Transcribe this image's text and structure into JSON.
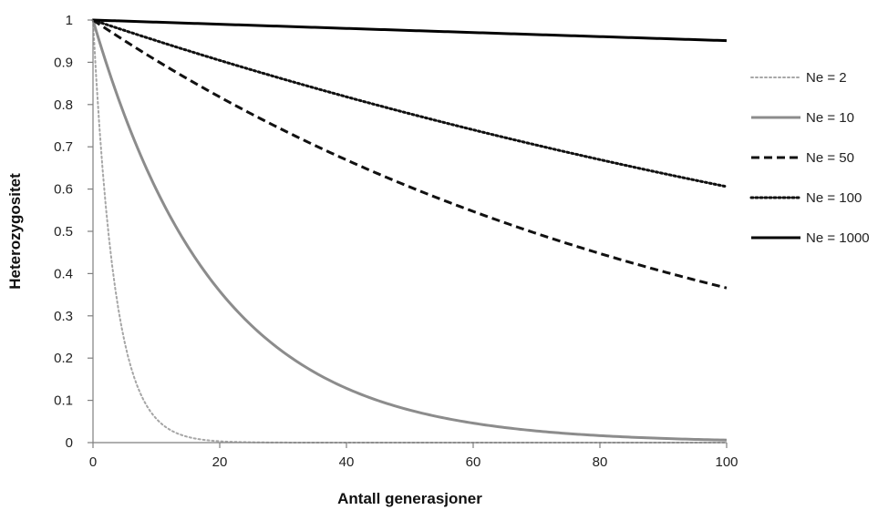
{
  "chart_data": {
    "type": "line",
    "title": "",
    "xlabel": "Antall generasjoner",
    "ylabel": "Heterozygositet",
    "xlim": [
      0,
      100
    ],
    "ylim": [
      0,
      1
    ],
    "x_ticks": [
      0,
      20,
      40,
      60,
      80,
      100
    ],
    "x_tick_labels": [
      "0",
      "20",
      "40",
      "60",
      "80",
      "100"
    ],
    "y_ticks": [
      0,
      0.1,
      0.2,
      0.3,
      0.4,
      0.5,
      0.6,
      0.7,
      0.8,
      0.9,
      1
    ],
    "y_tick_labels": [
      "0",
      "0.1",
      "0.2",
      "0.3",
      "0.4",
      "0.5",
      "0.6",
      "0.7",
      "0.8",
      "0.9",
      "1"
    ],
    "grid": false,
    "legend_position": "right",
    "x": [
      0,
      5,
      10,
      15,
      20,
      25,
      30,
      35,
      40,
      45,
      50,
      55,
      60,
      65,
      70,
      75,
      80,
      85,
      90,
      95,
      100
    ],
    "series": [
      {
        "name": "Ne = 2",
        "ne": 2,
        "color": "#a6a6a6",
        "style": "dotted",
        "values": [
          1,
          0.237,
          0.056,
          0.013,
          0.003,
          0.001,
          0,
          0,
          0,
          0,
          0,
          0,
          0,
          0,
          0,
          0,
          0,
          0,
          0,
          0,
          0
        ]
      },
      {
        "name": "Ne = 10",
        "ne": 10,
        "color": "#8c8c8c",
        "style": "solid",
        "values": [
          1,
          0.774,
          0.599,
          0.463,
          0.358,
          0.277,
          0.215,
          0.166,
          0.129,
          0.099,
          0.077,
          0.06,
          0.046,
          0.036,
          0.028,
          0.021,
          0.017,
          0.013,
          0.01,
          0.008,
          0.006
        ]
      },
      {
        "name": "Ne = 50",
        "ne": 50,
        "color": "#111111",
        "style": "dashed",
        "values": [
          1,
          0.951,
          0.904,
          0.859,
          0.817,
          0.777,
          0.739,
          0.703,
          0.668,
          0.635,
          0.605,
          0.575,
          0.547,
          0.52,
          0.494,
          0.47,
          0.447,
          0.425,
          0.404,
          0.384,
          0.366
        ]
      },
      {
        "name": "Ne = 100",
        "ne": 100,
        "color": "#111111",
        "style": "dotted",
        "values": [
          1,
          0.975,
          0.951,
          0.928,
          0.905,
          0.882,
          0.86,
          0.839,
          0.818,
          0.798,
          0.778,
          0.759,
          0.74,
          0.722,
          0.704,
          0.686,
          0.669,
          0.653,
          0.636,
          0.621,
          0.606
        ]
      },
      {
        "name": "Ne = 1000",
        "ne": 1000,
        "color": "#000000",
        "style": "solid",
        "values": [
          1,
          0.998,
          0.995,
          0.993,
          0.99,
          0.988,
          0.985,
          0.983,
          0.98,
          0.978,
          0.975,
          0.973,
          0.97,
          0.968,
          0.966,
          0.963,
          0.961,
          0.958,
          0.956,
          0.954,
          0.951
        ]
      }
    ]
  }
}
